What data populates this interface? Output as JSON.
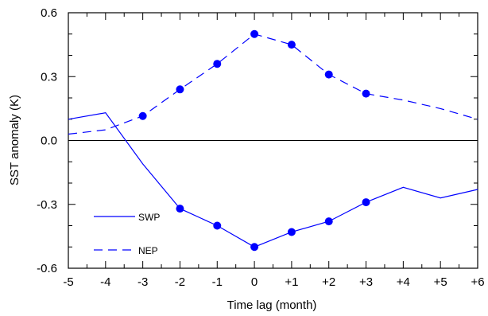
{
  "chart_data": {
    "type": "line",
    "title": "",
    "xlabel": "Time lag (month)",
    "ylabel": "SST anomaly (K)",
    "x": [
      -5,
      -4,
      -3,
      -2,
      -1,
      0,
      1,
      2,
      3,
      4,
      5,
      6
    ],
    "xtick_labels": [
      "-5",
      "-4",
      "-3",
      "-2",
      "-1",
      "0",
      "+1",
      "+2",
      "+3",
      "+4",
      "+5",
      "+6"
    ],
    "xlim": [
      -5,
      6
    ],
    "ylim": [
      -0.6,
      0.6
    ],
    "yticks": [
      -0.6,
      -0.3,
      0.0,
      0.3,
      0.6
    ],
    "ytick_labels": [
      "-0.6",
      "-0.3",
      "0.0",
      "0.3",
      "0.6"
    ],
    "zero_line": true,
    "grid": false,
    "legend_position": "lower-left",
    "series": [
      {
        "name": "SWP",
        "line_style": "solid",
        "color": "#0000ff",
        "values": [
          0.1,
          0.13,
          -0.11,
          -0.32,
          -0.4,
          -0.5,
          -0.43,
          -0.38,
          -0.29,
          -0.22,
          -0.27,
          -0.23
        ],
        "markers_at": [
          -2,
          -1,
          0,
          1,
          2,
          3
        ]
      },
      {
        "name": "NEP",
        "line_style": "dashed",
        "color": "#0000ff",
        "values": [
          0.03,
          0.05,
          0.115,
          0.24,
          0.36,
          0.5,
          0.45,
          0.31,
          0.22,
          0.19,
          0.15,
          0.1
        ],
        "markers_at": [
          -3,
          -2,
          -1,
          0,
          1,
          2,
          3
        ]
      }
    ]
  }
}
